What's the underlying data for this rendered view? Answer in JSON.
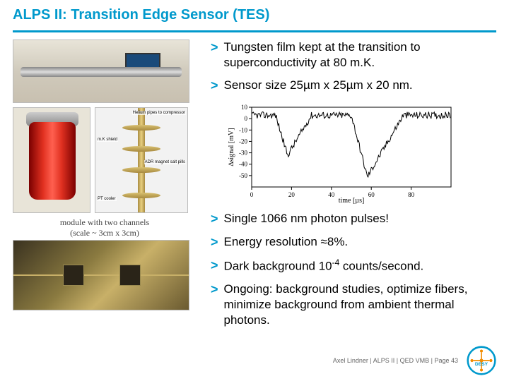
{
  "title": "ALPS II: Transition Edge Sensor (TES)",
  "colors": {
    "accent": "#0099cc",
    "text": "#000000",
    "bg": "#ffffff",
    "cryostat": "#e03020",
    "logo_orange": "#f28c00",
    "logo_blue": "#0099cc"
  },
  "bullets_top": [
    {
      "text": "Tungsten film kept at the transition to superconductivity at 80 m.K."
    },
    {
      "text": "Sensor size 25µm x 25µm x 20 nm."
    }
  ],
  "bullets_bottom": [
    {
      "text": "Single 1066 nm photon pulses!"
    },
    {
      "html": "Energy resolution ≈8%."
    },
    {
      "html": "Dark background 10<sup>-4</sup> counts/second."
    },
    {
      "text": "Ongoing: background studies, optimize fibers, minimize background from ambient thermal photons."
    }
  ],
  "insert_labels": {
    "a": "Helium pipes to compressor",
    "b": "m.K shield",
    "c": "ADR magnet salt pills",
    "d": "PT cooler"
  },
  "module_caption_line1": "module with two channels",
  "module_caption_line2": "(scale ~ 3cm x 3cm)",
  "chart": {
    "xlabel": "time [µs]",
    "ylabel": "∆signal [mV]",
    "xlim": [
      0,
      100
    ],
    "ylim": [
      -60,
      10
    ],
    "xticks": [
      0,
      20,
      40,
      60,
      80
    ],
    "yticks": [
      10,
      0,
      -10,
      -20,
      -30,
      -40,
      -50
    ],
    "line_color": "#000000",
    "bg": "#ffffff",
    "baseline": 3,
    "noise_amp": 3,
    "pulses": [
      {
        "t": 12,
        "depth": -35,
        "width": 6,
        "tail": 12
      },
      {
        "t": 50,
        "depth": -54,
        "width": 8,
        "tail": 18
      }
    ]
  },
  "footer": "Axel Lindner  |  ALPS II  |  QED VMB  |  Page 43",
  "logo_text": "DESY"
}
